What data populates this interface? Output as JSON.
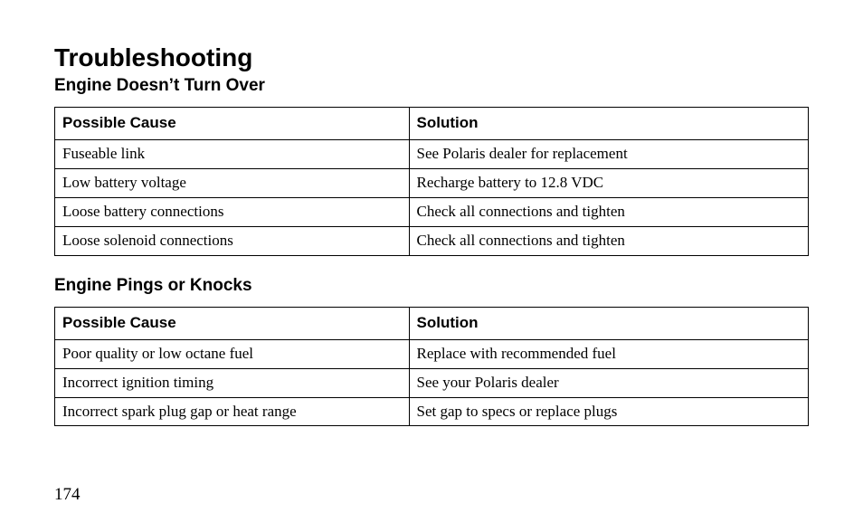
{
  "title": "Troubleshooting",
  "page_number": "174",
  "headers": {
    "cause": "Possible Cause",
    "solution": "Solution"
  },
  "sections": [
    {
      "heading": "Engine Doesn’t Turn Over",
      "rows": [
        {
          "cause": "Fuseable link",
          "solution": "See Polaris dealer for replacement"
        },
        {
          "cause": "Low battery voltage",
          "solution": "Recharge battery to 12.8 VDC"
        },
        {
          "cause": "Loose battery connections",
          "solution": "Check all connections and tighten"
        },
        {
          "cause": "Loose solenoid connections",
          "solution": "Check all connections and tighten"
        }
      ]
    },
    {
      "heading": "Engine Pings or Knocks",
      "rows": [
        {
          "cause": "Poor quality or low octane fuel",
          "solution": "Replace with recommended fuel"
        },
        {
          "cause": "Incorrect ignition timing",
          "solution": "See your Polaris dealer"
        },
        {
          "cause": "Incorrect spark plug gap or heat range",
          "solution": "Set gap to specs or replace plugs"
        }
      ]
    }
  ]
}
